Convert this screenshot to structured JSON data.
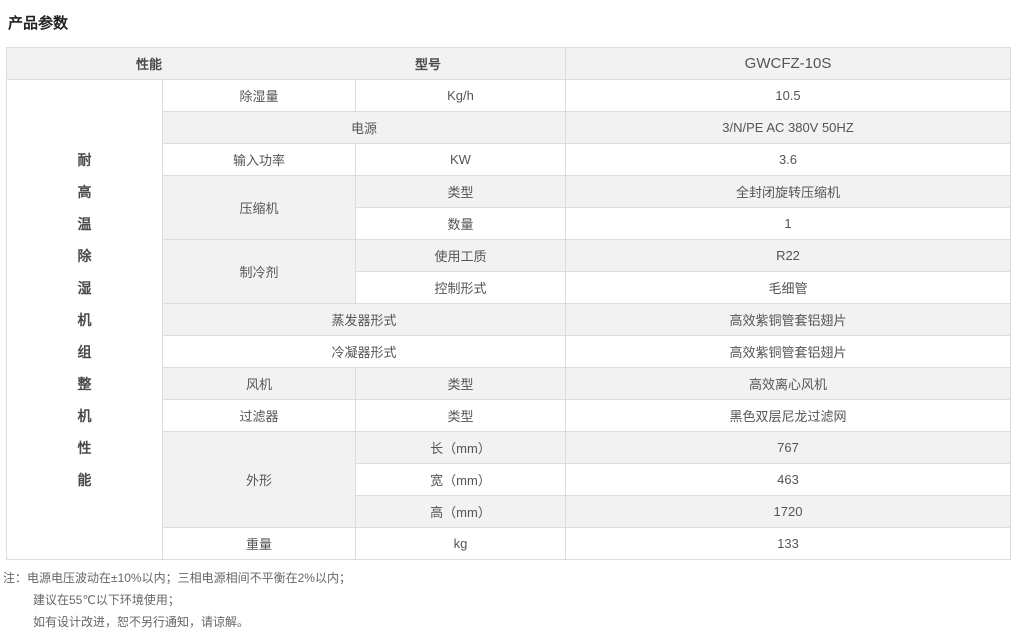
{
  "page_title": "产品参数",
  "table": {
    "header": {
      "performance": "性能",
      "model_label": "型号",
      "model_value": "GWCFZ-10S"
    },
    "side_label": "耐高温除湿机组整机性能",
    "rows": {
      "dehumidify": {
        "param": "除湿量",
        "unit": "Kg/h",
        "value": "10.5"
      },
      "power_supply": {
        "param": "电源",
        "value": "3/N/PE AC 380V 50HZ"
      },
      "input_power": {
        "param": "输入功率",
        "unit": "KW",
        "value": "3.6"
      },
      "compressor": {
        "group": "压缩机",
        "type_label": "类型",
        "type_value": "全封闭旋转压缩机",
        "qty_label": "数量",
        "qty_value": "1"
      },
      "refrigerant": {
        "group": "制冷剂",
        "medium_label": "使用工质",
        "medium_value": "R22",
        "control_label": "控制形式",
        "control_value": "毛细管"
      },
      "evaporator": {
        "param": "蒸发器形式",
        "value": "高效紫铜管套铝翅片"
      },
      "condenser": {
        "param": "冷凝器形式",
        "value": "高效紫铜管套铝翅片"
      },
      "fan": {
        "param": "风机",
        "unit": "类型",
        "value": "高效离心风机"
      },
      "filter": {
        "param": "过滤器",
        "unit": "类型",
        "value": "黑色双层尼龙过滤网"
      },
      "dimensions": {
        "group": "外形",
        "length_label": "长（mm）",
        "length_value": "767",
        "width_label": "宽（mm）",
        "width_value": "463",
        "height_label": "高（mm）",
        "height_value": "1720"
      },
      "weight": {
        "param": "重量",
        "unit": "kg",
        "value": "133"
      }
    }
  },
  "notes": {
    "line1": "注：电源电压波动在±10%以内；三相电源相间不平衡在2%以内；",
    "line2": "建议在55℃以下环境使用；",
    "line3": "如有设计改进，恕不另行通知，请谅解。"
  },
  "colors": {
    "row_shade": "#f2f2f2",
    "border": "#dddddd",
    "divider": "#cccccc",
    "body_text": "#555555",
    "title_text": "#222222"
  }
}
